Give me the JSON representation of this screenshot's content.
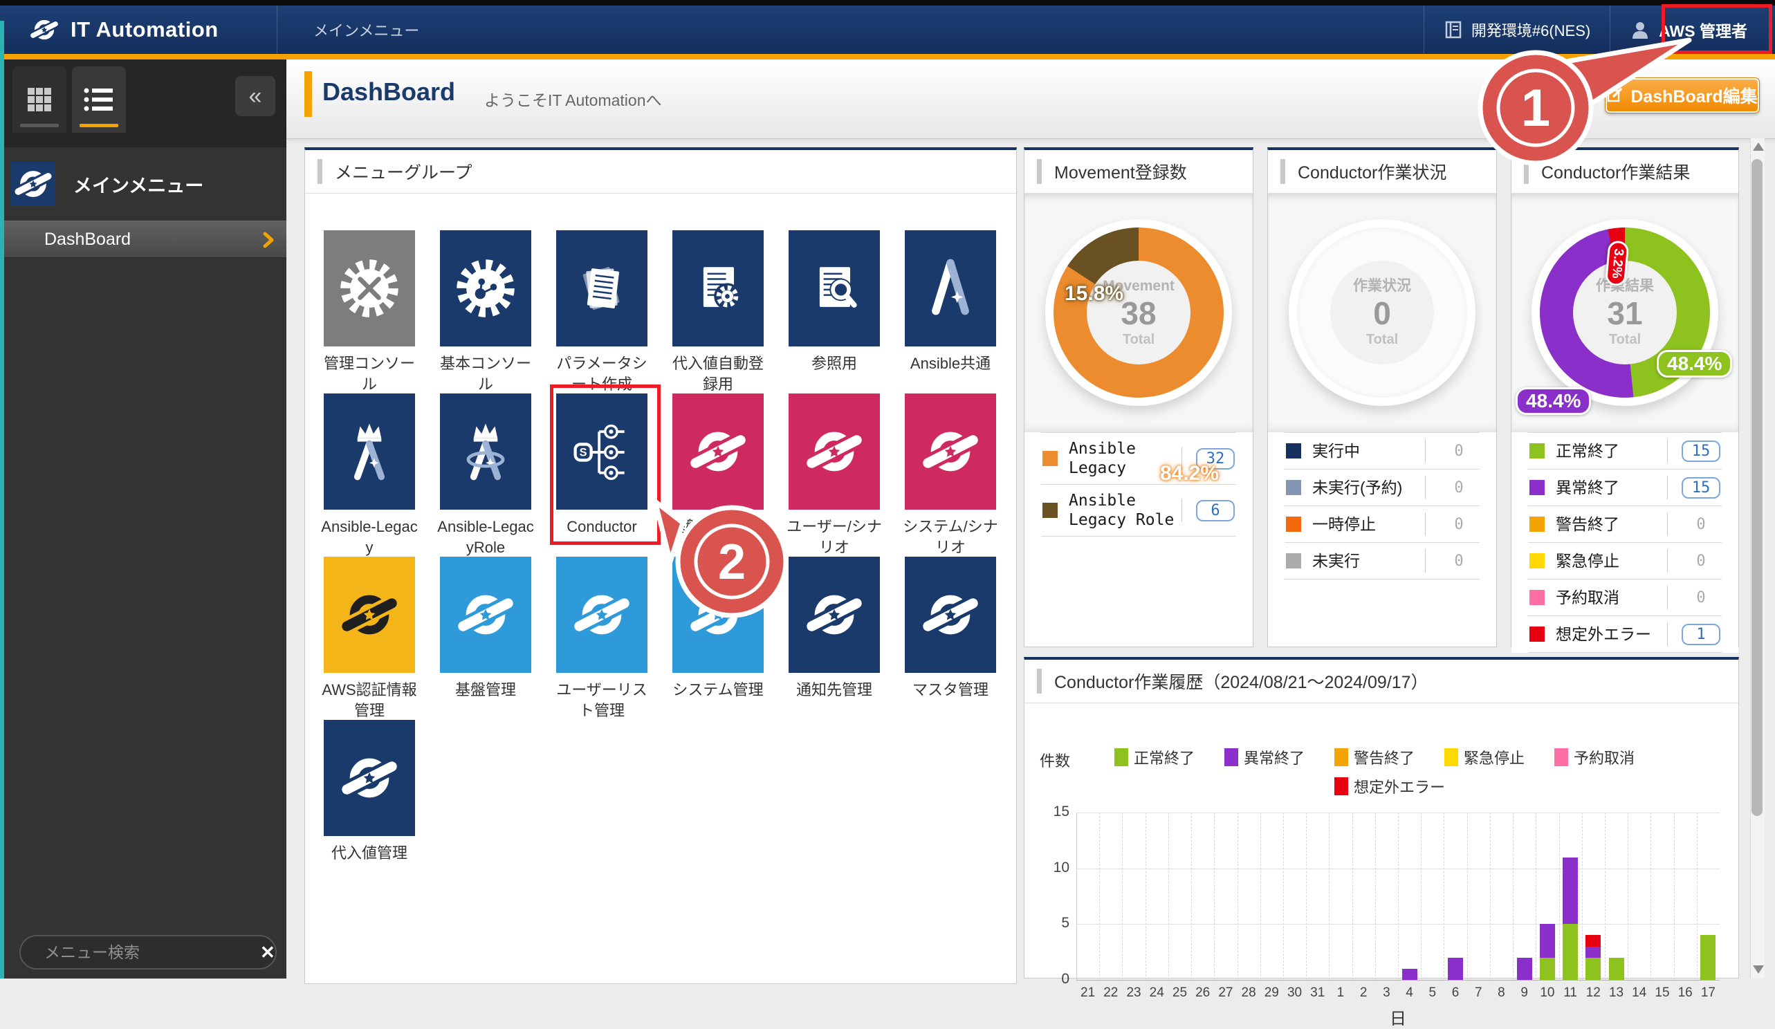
{
  "header": {
    "logo_text": "IT Automation",
    "nav": "メインメニュー",
    "environment": "開発環境#6(NES)",
    "user": "AWS 管理者"
  },
  "sidebar": {
    "menu_title": "メインメニュー",
    "items": [
      {
        "label": "DashBoard"
      }
    ],
    "search_placeholder": "メニュー検索"
  },
  "titlebar": {
    "title": "DashBoard",
    "welcome": "ようこそIT Automationへ",
    "edit_button": "DashBoard編集"
  },
  "menu_panel": {
    "title": "メニューグループ",
    "tiles": [
      {
        "label": "管理コンソール",
        "color": "gray",
        "icon": "gear-tools"
      },
      {
        "label": "基本コンソール",
        "color": "navy",
        "icon": "gear-nodes"
      },
      {
        "label": "パラメータシート作成",
        "color": "navy",
        "icon": "papers"
      },
      {
        "label": "代入値自動登録用",
        "color": "navy",
        "icon": "paper-gear"
      },
      {
        "label": "参照用",
        "color": "navy",
        "icon": "paper-search"
      },
      {
        "label": "Ansible共通",
        "color": "navy",
        "icon": "ansible"
      },
      {
        "label": "Ansible-Legacy",
        "color": "navy",
        "icon": "ansible-crown"
      },
      {
        "label": "Ansible-LegacyRole",
        "color": "navy",
        "icon": "ansible-crown-ring"
      },
      {
        "label": "Conductor",
        "color": "navy",
        "icon": "conductor",
        "highlighted": true
      },
      {
        "label": "基盤/シナリオ",
        "color": "crimson",
        "icon": "swirl"
      },
      {
        "label": "ユーザー/シナリオ",
        "color": "crimson",
        "icon": "swirl"
      },
      {
        "label": "システム/シナリオ",
        "color": "crimson",
        "icon": "swirl"
      },
      {
        "label": "AWS認証情報管理",
        "color": "amber",
        "icon": "swirl-dark"
      },
      {
        "label": "基盤管理",
        "color": "lightblue",
        "icon": "swirl"
      },
      {
        "label": "ユーザーリスト管理",
        "color": "lightblue",
        "icon": "swirl"
      },
      {
        "label": "システム管理",
        "color": "lightblue",
        "icon": "swirl"
      },
      {
        "label": "通知先管理",
        "color": "navy",
        "icon": "swirl"
      },
      {
        "label": "マスタ管理",
        "color": "navy",
        "icon": "swirl"
      },
      {
        "label": "代入値管理",
        "color": "navy",
        "icon": "swirl"
      }
    ]
  },
  "callouts": [
    "1",
    "2"
  ],
  "chart_data": [
    {
      "type": "pie",
      "title": "Movement登録数",
      "center_label": "Movement",
      "total": 38,
      "total_label": "Total",
      "slices": [
        {
          "label": "Ansible Legacy",
          "value": 32,
          "pct": "84.2%",
          "color": "#ed8c2e"
        },
        {
          "label": "Ansible Legacy Role",
          "value": 6,
          "pct": "15.8%",
          "color": "#6a5121"
        }
      ]
    },
    {
      "type": "pie",
      "title": "Conductor作業状況",
      "center_label": "作業状況",
      "total": 0,
      "total_label": "Total",
      "slices": [
        {
          "label": "実行中",
          "value": 0,
          "color": "#16305f"
        },
        {
          "label": "未実行(予約)",
          "value": 0,
          "color": "#8496b4"
        },
        {
          "label": "一時停止",
          "value": 0,
          "color": "#f4690b"
        },
        {
          "label": "未実行",
          "value": 0,
          "color": "#ababab"
        }
      ]
    },
    {
      "type": "pie",
      "title": "Conductor作業結果",
      "center_label": "作業結果",
      "total": 31,
      "total_label": "Total",
      "slices": [
        {
          "label": "正常終了",
          "value": 15,
          "pct": "48.4%",
          "color": "#8dc21f"
        },
        {
          "label": "異常終了",
          "value": 15,
          "pct": "48.4%",
          "color": "#8a2fc9"
        },
        {
          "label": "警告終了",
          "value": 0,
          "color": "#f5a300"
        },
        {
          "label": "緊急停止",
          "value": 0,
          "color": "#ffd800"
        },
        {
          "label": "予約取消",
          "value": 0,
          "color": "#ff6ea5"
        },
        {
          "label": "想定外エラー",
          "value": 1,
          "pct": "3.2%",
          "color": "#e60012"
        }
      ]
    },
    {
      "type": "bar",
      "title": "Conductor作業履歴（2024/08/21～2024/09/17）",
      "ylabel": "件数",
      "xlabel": "日",
      "ylim": [
        0,
        15
      ],
      "yticks": [
        0,
        5,
        10,
        15
      ],
      "grid": true,
      "legend_position": "top",
      "categories": [
        "21",
        "22",
        "23",
        "24",
        "25",
        "26",
        "27",
        "28",
        "29",
        "30",
        "31",
        "1",
        "2",
        "3",
        "4",
        "5",
        "6",
        "7",
        "8",
        "9",
        "10",
        "11",
        "12",
        "13",
        "14",
        "15",
        "16",
        "17"
      ],
      "series": [
        {
          "name": "正常終了",
          "color": "#8dc21f",
          "values": [
            0,
            0,
            0,
            0,
            0,
            0,
            0,
            0,
            0,
            0,
            0,
            0,
            0,
            0,
            0,
            0,
            0,
            0,
            0,
            0,
            2,
            5,
            2,
            2,
            0,
            0,
            0,
            4
          ]
        },
        {
          "name": "異常終了",
          "color": "#8a2fc9",
          "values": [
            0,
            0,
            0,
            0,
            0,
            0,
            0,
            0,
            0,
            0,
            0,
            0,
            0,
            0,
            1,
            0,
            2,
            0,
            0,
            2,
            3,
            6,
            1,
            0,
            0,
            0,
            0,
            0
          ]
        },
        {
          "name": "警告終了",
          "color": "#f5a300",
          "values": [
            0,
            0,
            0,
            0,
            0,
            0,
            0,
            0,
            0,
            0,
            0,
            0,
            0,
            0,
            0,
            0,
            0,
            0,
            0,
            0,
            0,
            0,
            0,
            0,
            0,
            0,
            0,
            0
          ]
        },
        {
          "name": "緊急停止",
          "color": "#ffd800",
          "values": [
            0,
            0,
            0,
            0,
            0,
            0,
            0,
            0,
            0,
            0,
            0,
            0,
            0,
            0,
            0,
            0,
            0,
            0,
            0,
            0,
            0,
            0,
            0,
            0,
            0,
            0,
            0,
            0
          ]
        },
        {
          "name": "予約取消",
          "color": "#ff6ea5",
          "values": [
            0,
            0,
            0,
            0,
            0,
            0,
            0,
            0,
            0,
            0,
            0,
            0,
            0,
            0,
            0,
            0,
            0,
            0,
            0,
            0,
            0,
            0,
            0,
            0,
            0,
            0,
            0,
            0
          ]
        },
        {
          "name": "想定外エラー",
          "color": "#e60012",
          "values": [
            0,
            0,
            0,
            0,
            0,
            0,
            0,
            0,
            0,
            0,
            0,
            0,
            0,
            0,
            0,
            0,
            0,
            0,
            0,
            0,
            0,
            0,
            1,
            0,
            0,
            0,
            0,
            0
          ]
        }
      ]
    }
  ]
}
